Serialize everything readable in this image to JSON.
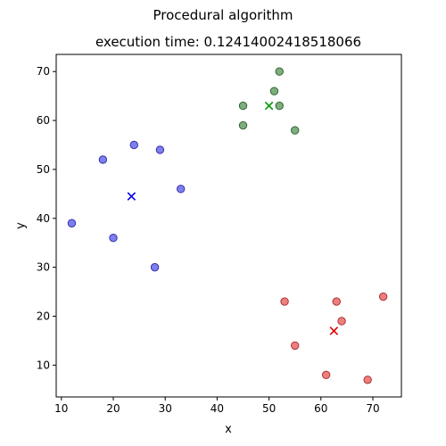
{
  "figure": {
    "suptitle": "Procedural algorithm",
    "title": "execution time: 0.12414002418518066"
  },
  "chart_data": {
    "type": "scatter",
    "title": "execution time: 0.12414002418518066",
    "xlabel": "x",
    "ylabel": "y",
    "xlim": [
      9.0,
      75.5
    ],
    "ylim": [
      3.5,
      73.5
    ],
    "xticks": [
      10,
      20,
      30,
      40,
      50,
      60,
      70
    ],
    "yticks": [
      10,
      20,
      30,
      40,
      50,
      60,
      70
    ],
    "grid": false,
    "legend": "none",
    "series": [
      {
        "color": "#7777ee",
        "edge_color": "#3333aa",
        "centroid_color": "#0000ee",
        "points": [
          [
            12,
            39
          ],
          [
            18,
            52
          ],
          [
            20,
            36
          ],
          [
            24,
            55
          ],
          [
            28,
            30
          ],
          [
            29,
            54
          ],
          [
            33,
            46
          ]
        ],
        "centroid": [
          23.5,
          44.5
        ]
      },
      {
        "color": "#77aa77",
        "edge_color": "#336633",
        "centroid_color": "#009900",
        "points": [
          [
            45,
            63
          ],
          [
            45,
            59
          ],
          [
            51,
            66
          ],
          [
            52,
            70
          ],
          [
            52,
            63
          ],
          [
            55,
            58
          ]
        ],
        "centroid": [
          50,
          63
        ]
      },
      {
        "color": "#ee7777",
        "edge_color": "#aa3333",
        "centroid_color": "#dd0000",
        "points": [
          [
            53,
            23
          ],
          [
            55,
            14
          ],
          [
            61,
            8
          ],
          [
            63,
            23
          ],
          [
            64,
            19
          ],
          [
            69,
            7
          ],
          [
            72,
            24
          ]
        ],
        "centroid": [
          62.5,
          17
        ]
      }
    ]
  }
}
